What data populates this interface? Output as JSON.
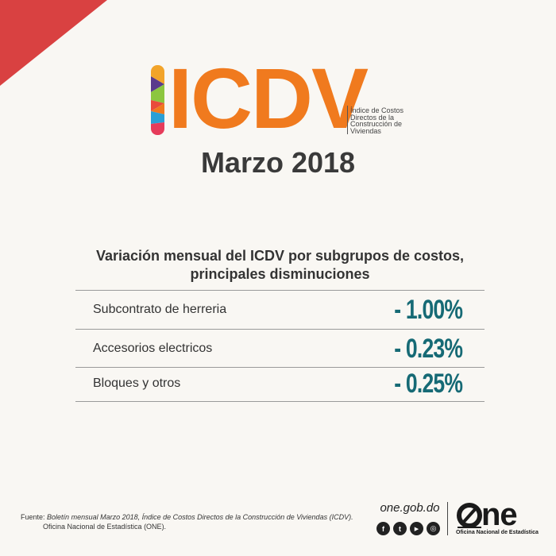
{
  "header": {
    "logo_text": "ICDV",
    "logo_subtitle": [
      "Índice de Costos",
      "Directos de la",
      "Construcción de",
      "Viviendas"
    ],
    "period": "Marzo 2018"
  },
  "table": {
    "title_line1": "Variación mensual del ICDV por subgrupos de costos,",
    "title_line2": "principales disminuciones",
    "rows": [
      {
        "label": "Subcontrato de herreria",
        "value": "- 1.00%"
      },
      {
        "label": "Accesorios electricos",
        "value": "- 0.23%"
      },
      {
        "label": "Bloques y otros",
        "value": "- 0.25%"
      }
    ]
  },
  "footer": {
    "source_lead": "Fuente:",
    "source_text": "Boletín mensual Marzo 2018, Índice de Costos Directos de la Construcción de Viviendas (ICDV).",
    "source_line2": "Oficina Nacional de Estadística (ONE).",
    "website": "one.gob.do",
    "socials": [
      {
        "icon": "facebook-icon",
        "glyph": "f"
      },
      {
        "icon": "twitter-icon",
        "glyph": "t"
      },
      {
        "icon": "youtube-icon",
        "glyph": "▶"
      },
      {
        "icon": "instagram-icon",
        "glyph": "◎"
      }
    ],
    "brand_logo": "ne",
    "brand_name": "Oficina Nacional de Estadística"
  },
  "colors": {
    "accent_orange": "#f07a1e",
    "value_teal": "#166a75",
    "corner_red": "#d94141",
    "background": "#f9f7f3"
  }
}
